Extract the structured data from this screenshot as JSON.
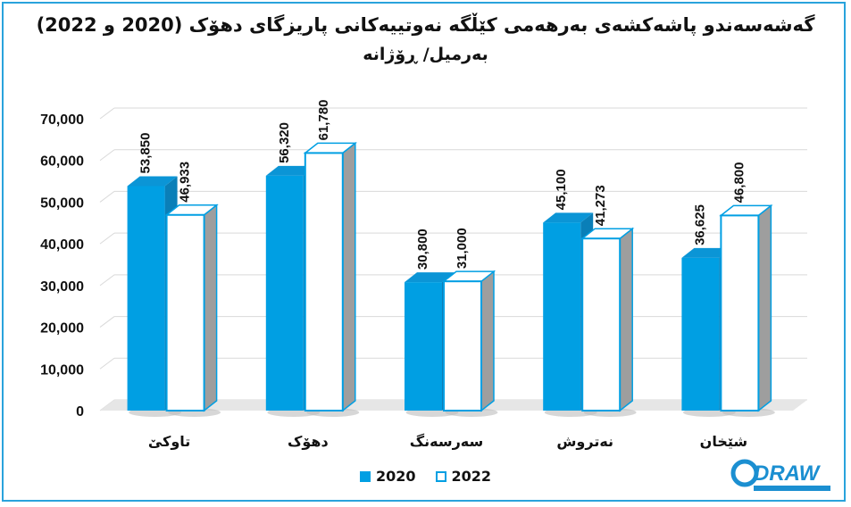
{
  "chart_data": {
    "type": "bar",
    "title": "گەشەسەندو پاشەکشەی بەرهەمی کێڵگە نەوتییەکانی پاریزگای دهۆک (2020 و 2022)",
    "subtitle": "بەرمیل/ ڕۆژانە",
    "categories": [
      "تاوکێ",
      "دهۆک",
      "سەرسەنگ",
      "نەتروش",
      "شێخان"
    ],
    "series": [
      {
        "name": "2020",
        "values": [
          53850,
          56320,
          30800,
          45100,
          36625
        ],
        "labels": [
          "53,850",
          "56,320",
          "30,800",
          "45,100",
          "36,625"
        ],
        "color": "#009fe3"
      },
      {
        "name": "2022",
        "values": [
          46933,
          61780,
          31000,
          41273,
          46800
        ],
        "labels": [
          "46,933",
          "61,780",
          "31,000",
          "41,273",
          "46,800"
        ],
        "color": "#ffffff"
      }
    ],
    "ylim": [
      0,
      70000
    ],
    "yticks": [
      "0",
      "10,000",
      "20,000",
      "30,000",
      "40,000",
      "50,000",
      "60,000",
      "70,000"
    ],
    "grid": true,
    "legend_position": "bottom"
  },
  "colors": {
    "accent": "#009fe3",
    "border": "#29a3dc",
    "side": "#9e9e9e",
    "grid": "#d9d9d9"
  },
  "logo": {
    "text": "DRAW"
  }
}
